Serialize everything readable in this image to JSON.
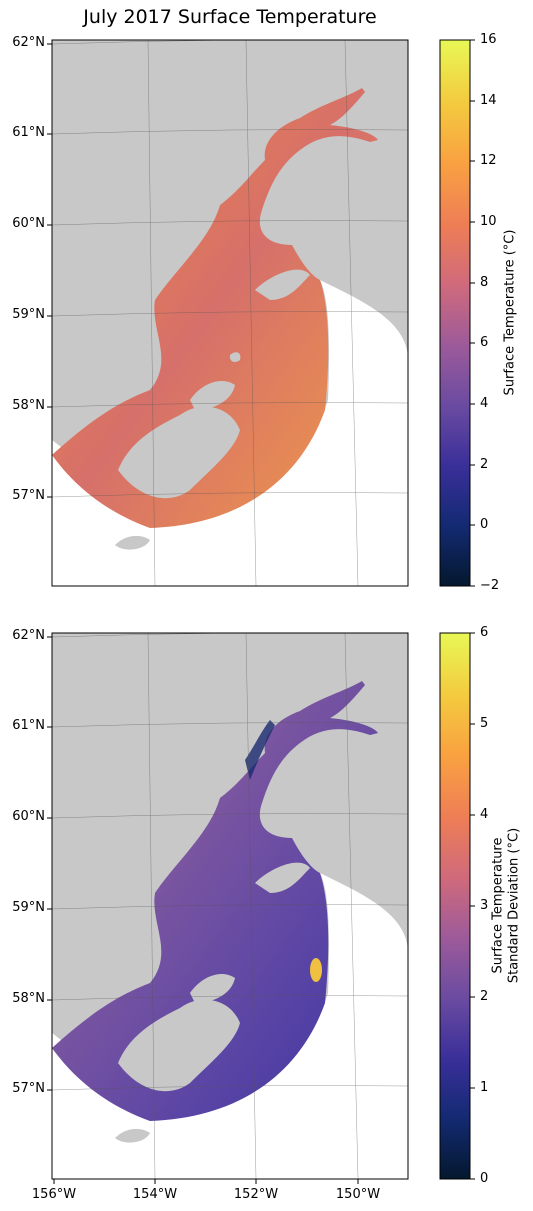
{
  "title": "July 2017 Surface Temperature",
  "lat_labels": [
    "62°N",
    "61°N",
    "60°N",
    "59°N",
    "58°N",
    "57°N"
  ],
  "lon_labels": [
    "156°W",
    "154°W",
    "152°W",
    "150°W"
  ],
  "top_panel": {
    "colorbar": {
      "label": "Surface Temperature (°C)",
      "ticks": [
        "16",
        "14",
        "12",
        "10",
        "8",
        "6",
        "4",
        "2",
        "0",
        "−2"
      ],
      "range": [
        -2,
        16
      ]
    }
  },
  "bottom_panel": {
    "colorbar": {
      "label_line1": "Surface Temperature",
      "label_line2": "Standard Deviation (°C)",
      "ticks": [
        "6",
        "5",
        "4",
        "3",
        "2",
        "1",
        "0"
      ],
      "range": [
        0,
        6
      ]
    }
  },
  "colors": {
    "land": "#c8c8c8",
    "colormap": [
      "#04182e",
      "#132a72",
      "#3a2f99",
      "#6a4ba1",
      "#9c5a9a",
      "#cf6a7c",
      "#ee7d56",
      "#f9a340",
      "#f3cc3f",
      "#e8f855"
    ]
  }
}
